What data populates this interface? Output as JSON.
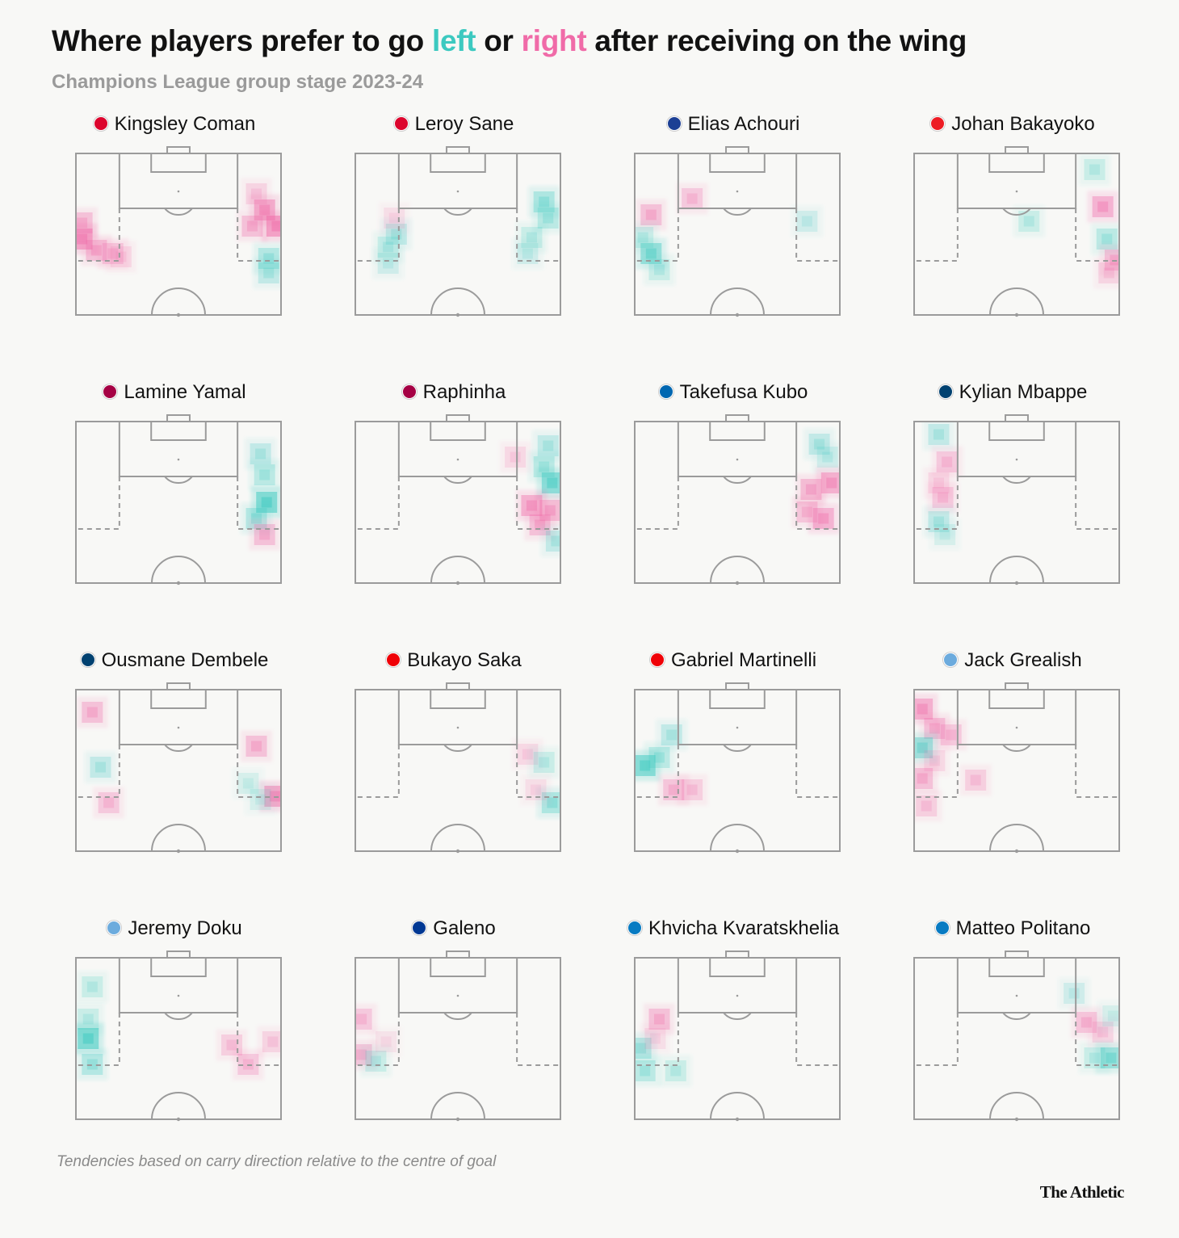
{
  "title": {
    "prefix": "Where players prefer to go ",
    "left_word": "left",
    "mid": " or ",
    "right_word": "right",
    "suffix": " after receiving on the wing"
  },
  "subtitle": "Champions League group stage 2023-24",
  "footnote": "Tendencies based on carry direction relative to the centre of goal",
  "logo": "The Athletic",
  "colors": {
    "left": "#3cc9c0",
    "right": "#f06ba8",
    "pitch_line": "#9b9b9b",
    "background": "#f8f8f6"
  },
  "chart_data": {
    "type": "heatmap",
    "layout": "small-multiples 4x4 half-pitch",
    "note": "each cell: u = 0 (left touchline) to 1 (right touchline), v = 0 (goal line) to 1 (halfway line); c = left or right preference; a = intensity 0-1",
    "players": [
      {
        "name": "Kingsley Coman",
        "badge": "#dc052d",
        "cells": [
          {
            "u": 0.03,
            "v": 0.53,
            "c": "right",
            "a": 0.9
          },
          {
            "u": 0.03,
            "v": 0.43,
            "c": "right",
            "a": 0.55
          },
          {
            "u": 0.1,
            "v": 0.6,
            "c": "right",
            "a": 0.55
          },
          {
            "u": 0.18,
            "v": 0.62,
            "c": "right",
            "a": 0.45
          },
          {
            "u": 0.22,
            "v": 0.64,
            "c": "right",
            "a": 0.3
          },
          {
            "u": 0.88,
            "v": 0.25,
            "c": "right",
            "a": 0.35
          },
          {
            "u": 0.92,
            "v": 0.35,
            "c": "right",
            "a": 0.8
          },
          {
            "u": 0.98,
            "v": 0.45,
            "c": "right",
            "a": 0.95
          },
          {
            "u": 0.86,
            "v": 0.45,
            "c": "right",
            "a": 0.55
          },
          {
            "u": 0.94,
            "v": 0.65,
            "c": "left",
            "a": 0.5
          },
          {
            "u": 0.94,
            "v": 0.74,
            "c": "left",
            "a": 0.4
          }
        ]
      },
      {
        "name": "Leroy Sane",
        "badge": "#dc052d",
        "cells": [
          {
            "u": 0.2,
            "v": 0.5,
            "c": "left",
            "a": 0.4
          },
          {
            "u": 0.16,
            "v": 0.58,
            "c": "left",
            "a": 0.35
          },
          {
            "u": 0.16,
            "v": 0.68,
            "c": "left",
            "a": 0.3
          },
          {
            "u": 0.19,
            "v": 0.4,
            "c": "right",
            "a": 0.25
          },
          {
            "u": 0.92,
            "v": 0.3,
            "c": "left",
            "a": 0.55
          },
          {
            "u": 0.94,
            "v": 0.4,
            "c": "left",
            "a": 0.45
          },
          {
            "u": 0.86,
            "v": 0.52,
            "c": "left",
            "a": 0.35
          },
          {
            "u": 0.84,
            "v": 0.62,
            "c": "left",
            "a": 0.3
          }
        ]
      },
      {
        "name": "Elias Achouri",
        "badge": "#1c3f94",
        "cells": [
          {
            "u": 0.08,
            "v": 0.38,
            "c": "right",
            "a": 0.55
          },
          {
            "u": 0.28,
            "v": 0.28,
            "c": "right",
            "a": 0.45
          },
          {
            "u": 0.04,
            "v": 0.52,
            "c": "left",
            "a": 0.35
          },
          {
            "u": 0.08,
            "v": 0.62,
            "c": "left",
            "a": 0.75
          },
          {
            "u": 0.12,
            "v": 0.72,
            "c": "left",
            "a": 0.35
          },
          {
            "u": 0.84,
            "v": 0.42,
            "c": "left",
            "a": 0.3
          }
        ]
      },
      {
        "name": "Johan Bakayoko",
        "badge": "#ed1c24",
        "cells": [
          {
            "u": 0.88,
            "v": 0.1,
            "c": "left",
            "a": 0.35
          },
          {
            "u": 0.92,
            "v": 0.33,
            "c": "right",
            "a": 0.7
          },
          {
            "u": 0.94,
            "v": 0.53,
            "c": "left",
            "a": 0.45
          },
          {
            "u": 0.98,
            "v": 0.66,
            "c": "right",
            "a": 0.55
          },
          {
            "u": 0.95,
            "v": 0.74,
            "c": "right",
            "a": 0.35
          },
          {
            "u": 0.56,
            "v": 0.42,
            "c": "left",
            "a": 0.35
          }
        ]
      },
      {
        "name": "Lamine Yamal",
        "badge": "#a50044",
        "cells": [
          {
            "u": 0.9,
            "v": 0.2,
            "c": "left",
            "a": 0.4
          },
          {
            "u": 0.92,
            "v": 0.33,
            "c": "left",
            "a": 0.45
          },
          {
            "u": 0.93,
            "v": 0.5,
            "c": "left",
            "a": 0.95
          },
          {
            "u": 0.88,
            "v": 0.6,
            "c": "left",
            "a": 0.5
          },
          {
            "u": 0.92,
            "v": 0.7,
            "c": "right",
            "a": 0.55
          }
        ]
      },
      {
        "name": "Raphinha",
        "badge": "#a50044",
        "cells": [
          {
            "u": 0.94,
            "v": 0.15,
            "c": "left",
            "a": 0.4
          },
          {
            "u": 0.96,
            "v": 0.38,
            "c": "left",
            "a": 0.85
          },
          {
            "u": 0.92,
            "v": 0.28,
            "c": "left",
            "a": 0.45
          },
          {
            "u": 0.86,
            "v": 0.52,
            "c": "right",
            "a": 0.75
          },
          {
            "u": 0.95,
            "v": 0.55,
            "c": "right",
            "a": 0.6
          },
          {
            "u": 0.9,
            "v": 0.64,
            "c": "right",
            "a": 0.55
          },
          {
            "u": 0.98,
            "v": 0.74,
            "c": "left",
            "a": 0.4
          },
          {
            "u": 0.78,
            "v": 0.22,
            "c": "right",
            "a": 0.3
          }
        ]
      },
      {
        "name": "Takefusa Kubo",
        "badge": "#0067b1",
        "cells": [
          {
            "u": 0.9,
            "v": 0.14,
            "c": "left",
            "a": 0.4
          },
          {
            "u": 0.94,
            "v": 0.22,
            "c": "left",
            "a": 0.3
          },
          {
            "u": 0.86,
            "v": 0.42,
            "c": "right",
            "a": 0.6
          },
          {
            "u": 0.96,
            "v": 0.38,
            "c": "right",
            "a": 0.75
          },
          {
            "u": 0.92,
            "v": 0.6,
            "c": "right",
            "a": 0.7
          },
          {
            "u": 0.84,
            "v": 0.56,
            "c": "right",
            "a": 0.5
          }
        ]
      },
      {
        "name": "Kylian Mbappe",
        "badge": "#004170",
        "cells": [
          {
            "u": 0.12,
            "v": 0.08,
            "c": "left",
            "a": 0.4
          },
          {
            "u": 0.16,
            "v": 0.25,
            "c": "right",
            "a": 0.45
          },
          {
            "u": 0.12,
            "v": 0.38,
            "c": "right",
            "a": 0.3
          },
          {
            "u": 0.14,
            "v": 0.47,
            "c": "right",
            "a": 0.45
          },
          {
            "u": 0.12,
            "v": 0.62,
            "c": "left",
            "a": 0.4
          },
          {
            "u": 0.15,
            "v": 0.7,
            "c": "left",
            "a": 0.25
          }
        ]
      },
      {
        "name": "Ousmane Dembele",
        "badge": "#004170",
        "cells": [
          {
            "u": 0.08,
            "v": 0.14,
            "c": "right",
            "a": 0.55
          },
          {
            "u": 0.12,
            "v": 0.48,
            "c": "left",
            "a": 0.4
          },
          {
            "u": 0.16,
            "v": 0.7,
            "c": "right",
            "a": 0.45
          },
          {
            "u": 0.88,
            "v": 0.35,
            "c": "right",
            "a": 0.55
          },
          {
            "u": 0.84,
            "v": 0.58,
            "c": "left",
            "a": 0.25
          },
          {
            "u": 0.97,
            "v": 0.66,
            "c": "right",
            "a": 0.85
          },
          {
            "u": 0.9,
            "v": 0.68,
            "c": "left",
            "a": 0.25
          }
        ]
      },
      {
        "name": "Bukayo Saka",
        "badge": "#ef0107",
        "cells": [
          {
            "u": 0.84,
            "v": 0.4,
            "c": "right",
            "a": 0.3
          },
          {
            "u": 0.92,
            "v": 0.45,
            "c": "left",
            "a": 0.35
          },
          {
            "u": 0.96,
            "v": 0.7,
            "c": "left",
            "a": 0.55
          },
          {
            "u": 0.88,
            "v": 0.62,
            "c": "right",
            "a": 0.25
          }
        ]
      },
      {
        "name": "Gabriel Martinelli",
        "badge": "#ef0107",
        "cells": [
          {
            "u": 0.18,
            "v": 0.28,
            "c": "left",
            "a": 0.4
          },
          {
            "u": 0.05,
            "v": 0.47,
            "c": "left",
            "a": 0.9
          },
          {
            "u": 0.12,
            "v": 0.42,
            "c": "left",
            "a": 0.45
          },
          {
            "u": 0.19,
            "v": 0.62,
            "c": "right",
            "a": 0.5
          },
          {
            "u": 0.28,
            "v": 0.62,
            "c": "right",
            "a": 0.4
          }
        ]
      },
      {
        "name": "Jack Grealish",
        "badge": "#6cabdd",
        "cells": [
          {
            "u": 0.04,
            "v": 0.12,
            "c": "right",
            "a": 0.75
          },
          {
            "u": 0.1,
            "v": 0.24,
            "c": "right",
            "a": 0.55
          },
          {
            "u": 0.18,
            "v": 0.28,
            "c": "right",
            "a": 0.45
          },
          {
            "u": 0.04,
            "v": 0.36,
            "c": "left",
            "a": 0.7
          },
          {
            "u": 0.1,
            "v": 0.44,
            "c": "right",
            "a": 0.3
          },
          {
            "u": 0.04,
            "v": 0.55,
            "c": "right",
            "a": 0.55
          },
          {
            "u": 0.3,
            "v": 0.56,
            "c": "right",
            "a": 0.4
          },
          {
            "u": 0.06,
            "v": 0.72,
            "c": "right",
            "a": 0.4
          }
        ]
      },
      {
        "name": "Jeremy Doku",
        "badge": "#6cabdd",
        "cells": [
          {
            "u": 0.08,
            "v": 0.18,
            "c": "left",
            "a": 0.35
          },
          {
            "u": 0.06,
            "v": 0.5,
            "c": "left",
            "a": 0.95
          },
          {
            "u": 0.08,
            "v": 0.66,
            "c": "left",
            "a": 0.5
          },
          {
            "u": 0.06,
            "v": 0.38,
            "c": "left",
            "a": 0.35
          },
          {
            "u": 0.76,
            "v": 0.54,
            "c": "right",
            "a": 0.4
          },
          {
            "u": 0.84,
            "v": 0.66,
            "c": "right",
            "a": 0.45
          },
          {
            "u": 0.96,
            "v": 0.52,
            "c": "right",
            "a": 0.35
          }
        ]
      },
      {
        "name": "Galeno",
        "badge": "#003893",
        "cells": [
          {
            "u": 0.03,
            "v": 0.38,
            "c": "right",
            "a": 0.45
          },
          {
            "u": 0.03,
            "v": 0.6,
            "c": "right",
            "a": 0.5
          },
          {
            "u": 0.1,
            "v": 0.64,
            "c": "left",
            "a": 0.35
          },
          {
            "u": 0.15,
            "v": 0.52,
            "c": "right",
            "a": 0.2
          }
        ]
      },
      {
        "name": "Khvicha Kvaratskhelia",
        "badge": "#087bc2",
        "cells": [
          {
            "u": 0.12,
            "v": 0.38,
            "c": "right",
            "a": 0.55
          },
          {
            "u": 0.03,
            "v": 0.56,
            "c": "left",
            "a": 0.5
          },
          {
            "u": 0.05,
            "v": 0.7,
            "c": "left",
            "a": 0.45
          },
          {
            "u": 0.2,
            "v": 0.7,
            "c": "left",
            "a": 0.35
          },
          {
            "u": 0.1,
            "v": 0.5,
            "c": "right",
            "a": 0.25
          }
        ]
      },
      {
        "name": "Matteo Politano",
        "badge": "#087bc2",
        "cells": [
          {
            "u": 0.78,
            "v": 0.22,
            "c": "left",
            "a": 0.3
          },
          {
            "u": 0.84,
            "v": 0.4,
            "c": "right",
            "a": 0.5
          },
          {
            "u": 0.92,
            "v": 0.46,
            "c": "right",
            "a": 0.35
          },
          {
            "u": 0.96,
            "v": 0.62,
            "c": "left",
            "a": 0.7
          },
          {
            "u": 0.88,
            "v": 0.62,
            "c": "left",
            "a": 0.35
          },
          {
            "u": 0.97,
            "v": 0.36,
            "c": "left",
            "a": 0.25
          }
        ]
      }
    ]
  }
}
